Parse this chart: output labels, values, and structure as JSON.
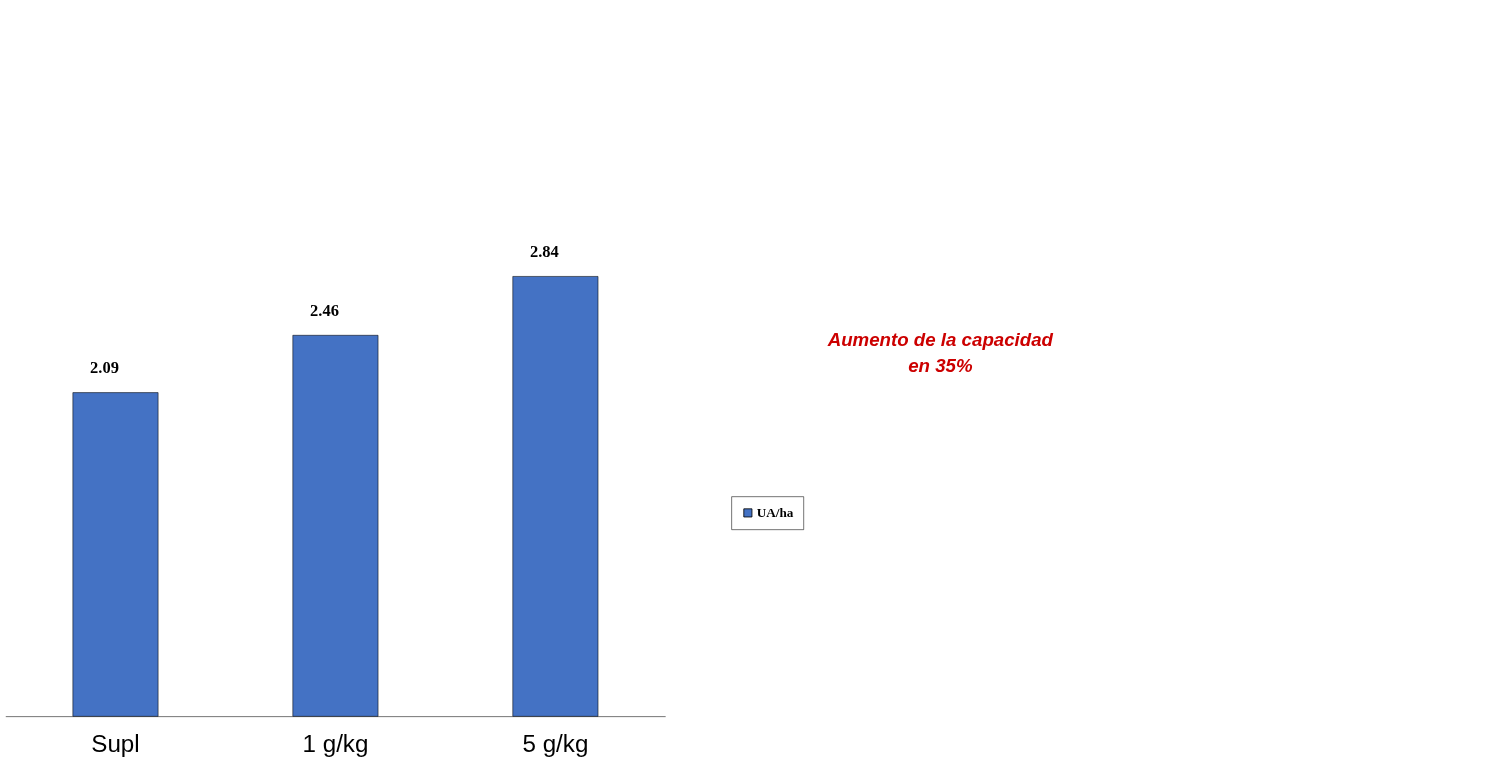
{
  "chart_data": {
    "type": "bar",
    "categories": [
      "Supl",
      "1 g/kg",
      "5 g/kg"
    ],
    "series": [
      {
        "name": "UA/ha",
        "color": "#4472c4",
        "values": [
          2.09,
          2.46,
          2.84
        ]
      }
    ],
    "data_labels": true,
    "legend": "right",
    "annotations": [
      "Aumento de la capacidad en 35%"
    ]
  }
}
